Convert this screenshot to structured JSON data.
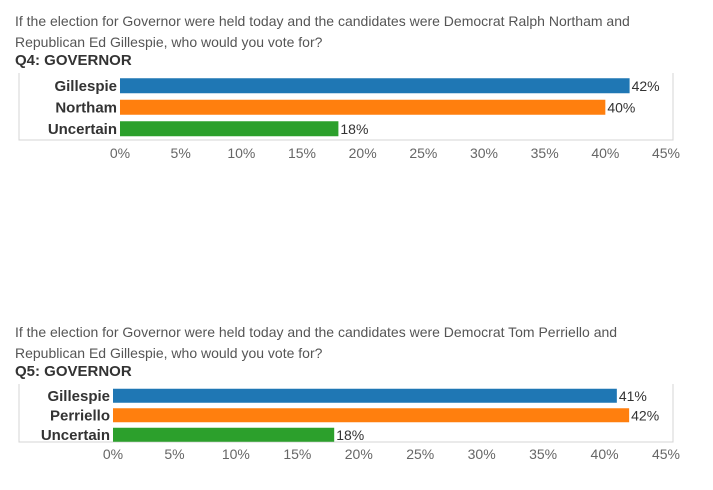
{
  "colors": {
    "series": [
      "#1f77b4",
      "#ff7f0e",
      "#2ca02c"
    ],
    "frame": "#d4d4d4"
  },
  "chart_data": [
    {
      "type": "bar",
      "orientation": "horizontal",
      "question": "If the election for Governor were held today and the candidates were Democrat Ralph Northam and Republican Ed Gillespie, who would you vote for?",
      "title": "Q4: GOVERNOR",
      "categories": [
        "Gillespie",
        "Northam",
        "Uncertain"
      ],
      "values": [
        42,
        40,
        18
      ],
      "value_labels": [
        "42%",
        "40%",
        "18%"
      ],
      "xlim": [
        0,
        45
      ],
      "ticks": [
        0,
        5,
        10,
        15,
        20,
        25,
        30,
        35,
        40,
        45
      ],
      "tick_labels": [
        "0%",
        "5%",
        "10%",
        "15%",
        "20%",
        "25%",
        "30%",
        "35%",
        "40%",
        "45%"
      ],
      "grid": false,
      "legend": "none"
    },
    {
      "type": "bar",
      "orientation": "horizontal",
      "question": "If the election for Governor were held today and the candidates were Democrat Tom Perriello and Republican Ed Gillespie, who would you vote for?",
      "title": "Q5: GOVERNOR",
      "categories": [
        "Gillespie",
        "Perriello",
        "Uncertain"
      ],
      "values": [
        41,
        42,
        18
      ],
      "value_labels": [
        "41%",
        "42%",
        "18%"
      ],
      "xlim": [
        0,
        45
      ],
      "ticks": [
        0,
        5,
        10,
        15,
        20,
        25,
        30,
        35,
        40,
        45
      ],
      "tick_labels": [
        "0%",
        "5%",
        "10%",
        "15%",
        "20%",
        "25%",
        "30%",
        "35%",
        "40%",
        "45%"
      ],
      "grid": false,
      "legend": "none"
    }
  ]
}
